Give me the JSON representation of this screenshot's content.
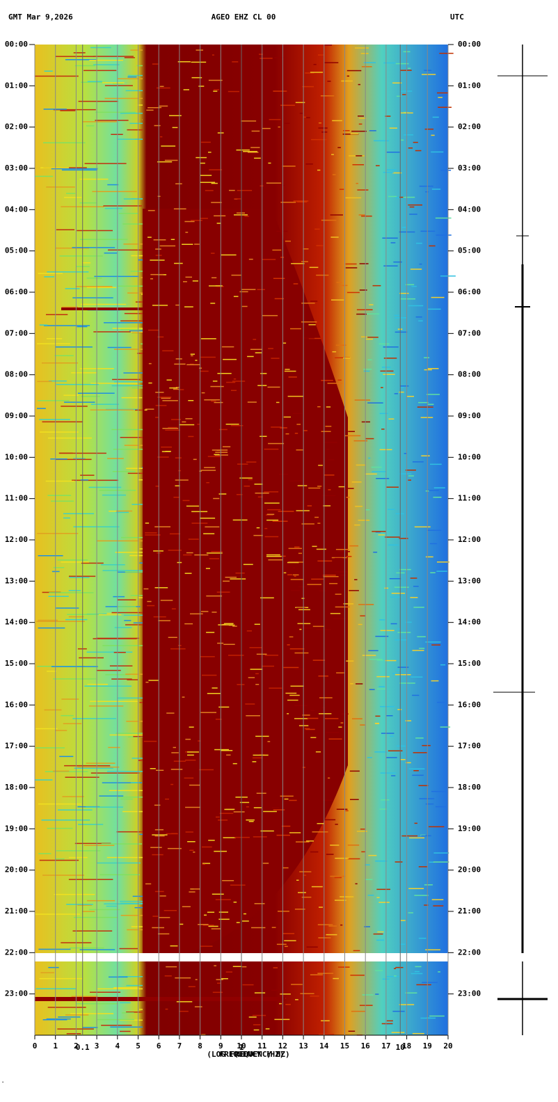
{
  "chart_data": {
    "type": "spectrogram",
    "header_left": "GMT  Mar 9,2026",
    "title": "AGEO EHZ CL 00",
    "header_right": "UTC",
    "xlabel": "FREQUENCY (HZ)",
    "x2label": "(LOG FREQUENCY HZ)",
    "xlim": [
      0,
      20
    ],
    "xticks": [
      0,
      1,
      2,
      3,
      4,
      5,
      6,
      7,
      8,
      9,
      10,
      11,
      12,
      13,
      14,
      15,
      16,
      17,
      18,
      19,
      20
    ],
    "x2lim": [
      0.05,
      20
    ],
    "x2scale": "log",
    "x2ticks": [
      0.1,
      1,
      10
    ],
    "ylim": [
      0,
      24
    ],
    "yticks": [
      {
        "value": 0,
        "label": "00:00"
      },
      {
        "value": 1,
        "label": "01:00"
      },
      {
        "value": 2,
        "label": "02:00"
      },
      {
        "value": 3,
        "label": "03:00"
      },
      {
        "value": 4,
        "label": "04:00"
      },
      {
        "value": 5,
        "label": "05:00"
      },
      {
        "value": 6,
        "label": "06:00"
      },
      {
        "value": 7,
        "label": "07:00"
      },
      {
        "value": 8,
        "label": "08:00"
      },
      {
        "value": 9,
        "label": "09:00"
      },
      {
        "value": 10,
        "label": "10:00"
      },
      {
        "value": 11,
        "label": "11:00"
      },
      {
        "value": 12,
        "label": "12:00"
      },
      {
        "value": 13,
        "label": "13:00"
      },
      {
        "value": 14,
        "label": "14:00"
      },
      {
        "value": 15,
        "label": "15:00"
      },
      {
        "value": 16,
        "label": "16:00"
      },
      {
        "value": 17,
        "label": "17:00"
      },
      {
        "value": 18,
        "label": "18:00"
      },
      {
        "value": 19,
        "label": "19:00"
      },
      {
        "value": 20,
        "label": "20:00"
      },
      {
        "value": 21,
        "label": "21:00"
      },
      {
        "value": 22,
        "label": "22:00"
      },
      {
        "value": 23,
        "label": "23:00"
      }
    ],
    "grid": true
  }
}
